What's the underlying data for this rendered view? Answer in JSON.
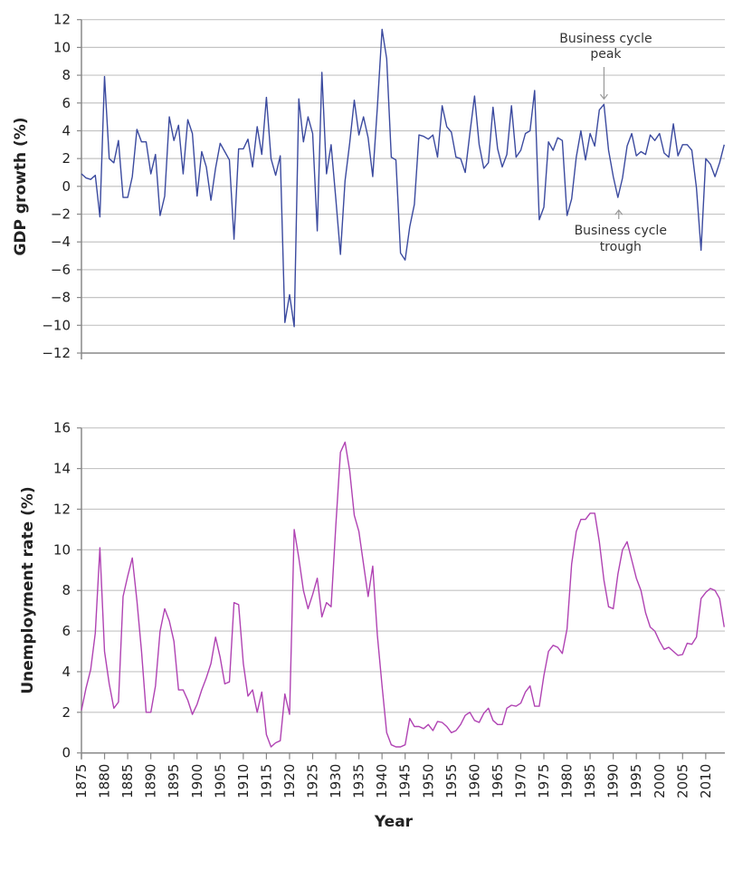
{
  "chart_data": [
    {
      "type": "line",
      "ylabel": "GDP growth (%)",
      "xlabel": "",
      "ylim": [
        -12,
        12
      ],
      "yticks": [
        12,
        10,
        8,
        6,
        4,
        2,
        0,
        -2,
        -4,
        -6,
        -8,
        -10,
        -12
      ],
      "grid": true,
      "color": "#3b4a9f",
      "x_start": 1875,
      "values": [
        0.9,
        0.6,
        0.5,
        0.8,
        -2.2,
        7.9,
        2.0,
        1.7,
        3.3,
        -0.8,
        -0.8,
        0.7,
        4.1,
        3.2,
        3.2,
        0.9,
        2.3,
        -2.1,
        -0.7,
        5.0,
        3.3,
        4.4,
        0.9,
        4.8,
        3.8,
        -0.7,
        2.5,
        1.4,
        -1.0,
        1.3,
        3.1,
        2.5,
        1.9,
        -3.8,
        2.7,
        2.7,
        3.4,
        1.4,
        4.3,
        2.3,
        6.4,
        2.0,
        0.8,
        2.2,
        -9.8,
        -7.8,
        -10.1,
        6.3,
        3.2,
        5.0,
        3.8,
        -3.2,
        8.2,
        0.9,
        3.0,
        -0.9,
        -4.9,
        0.4,
        3.1,
        6.2,
        3.7,
        5.0,
        3.5,
        0.7,
        5.7,
        11.3,
        9.2,
        2.1,
        1.9,
        -4.8,
        -5.3,
        -2.9,
        -1.3,
        3.7,
        3.6,
        3.4,
        3.7,
        2.1,
        5.8,
        4.3,
        3.9,
        2.1,
        2.0,
        1.0,
        3.8,
        6.5,
        3.0,
        1.3,
        1.7,
        5.7,
        2.7,
        1.4,
        2.3,
        5.8,
        2.1,
        2.6,
        3.8,
        4.0,
        6.9,
        -2.4,
        -1.5,
        3.2,
        2.6,
        3.5,
        3.3,
        -2.1,
        -0.9,
        2.1,
        4.0,
        1.9,
        3.8,
        2.9,
        5.5,
        5.9,
        2.6,
        0.7,
        -0.8,
        0.6,
        2.9,
        3.8,
        2.2,
        2.5,
        2.3,
        3.7,
        3.3,
        3.8,
        2.4,
        2.1,
        4.5,
        2.2,
        3.0,
        3.0,
        2.6,
        -0.1,
        -4.6,
        2.0,
        1.6,
        0.7,
        1.7,
        3.0
      ],
      "annotations": [
        {
          "text": [
            "Business cycle",
            "peak"
          ],
          "year": 1988,
          "value": 5.9,
          "arrow": "down"
        },
        {
          "text": [
            "Business cycle",
            "trough"
          ],
          "year": 1991,
          "value": -0.8,
          "arrow": "up"
        }
      ]
    },
    {
      "type": "line",
      "ylabel": "Unemployment rate (%)",
      "xlabel": "Year",
      "ylim": [
        0,
        16
      ],
      "yticks": [
        16,
        14,
        12,
        10,
        8,
        6,
        4,
        2,
        0
      ],
      "grid": true,
      "color": "#b043b3",
      "x_start": 1875,
      "xticks": [
        1875,
        1880,
        1885,
        1890,
        1895,
        1900,
        1905,
        1910,
        1915,
        1920,
        1925,
        1930,
        1935,
        1940,
        1945,
        1950,
        1955,
        1960,
        1965,
        1970,
        1975,
        1980,
        1985,
        1990,
        1995,
        2000,
        2005,
        2010
      ],
      "values": [
        2.1,
        3.2,
        4.1,
        5.9,
        10.1,
        5.0,
        3.4,
        2.2,
        2.5,
        7.7,
        8.7,
        9.6,
        7.5,
        5.0,
        2.0,
        2.0,
        3.3,
        6.0,
        7.1,
        6.5,
        5.5,
        3.1,
        3.1,
        2.6,
        1.9,
        2.4,
        3.1,
        3.7,
        4.4,
        5.7,
        4.7,
        3.4,
        3.5,
        7.4,
        7.3,
        4.4,
        2.8,
        3.1,
        2.0,
        3.0,
        0.9,
        0.3,
        0.5,
        0.6,
        2.9,
        1.9,
        11.0,
        9.6,
        8.0,
        7.1,
        7.8,
        8.6,
        6.7,
        7.4,
        7.2,
        11.2,
        14.8,
        15.3,
        13.9,
        11.7,
        10.9,
        9.3,
        7.7,
        9.2,
        5.8,
        3.3,
        1.0,
        0.4,
        0.3,
        0.3,
        0.4,
        1.7,
        1.3,
        1.3,
        1.2,
        1.4,
        1.1,
        1.55,
        1.5,
        1.3,
        1.0,
        1.1,
        1.4,
        1.85,
        2.0,
        1.6,
        1.5,
        1.95,
        2.2,
        1.6,
        1.4,
        1.4,
        2.2,
        2.35,
        2.3,
        2.45,
        3.0,
        3.3,
        2.3,
        2.3,
        3.8,
        5.0,
        5.3,
        5.2,
        4.9,
        6.1,
        9.3,
        10.9,
        11.5,
        11.5,
        11.8,
        11.8,
        10.4,
        8.5,
        7.2,
        7.1,
        8.8,
        10.0,
        10.4,
        9.5,
        8.6,
        8.0,
        6.9,
        6.2,
        6.0,
        5.5,
        5.1,
        5.2,
        5.0,
        4.8,
        4.85,
        5.4,
        5.35,
        5.7,
        7.6,
        7.9,
        8.1,
        8.0,
        7.6,
        6.2
      ]
    }
  ]
}
